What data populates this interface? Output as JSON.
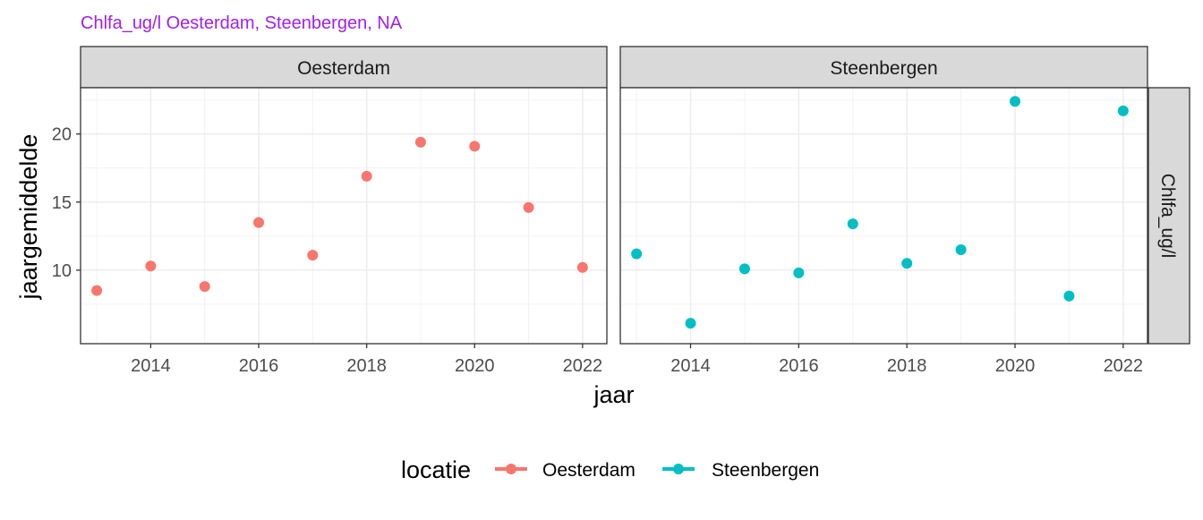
{
  "chart_data": {
    "type": "scatter",
    "title": "Chlfa_ug/l Oesterdam, Steenbergen, NA",
    "xlabel": "jaar",
    "ylabel": "jaargemiddelde",
    "strip_right": "Chlfa_ug/l",
    "xlim": [
      2012.7,
      2022.45
    ],
    "ylim": [
      4.6,
      23.4
    ],
    "x_ticks": [
      2014,
      2016,
      2018,
      2020,
      2022
    ],
    "x_tick_labels": [
      "2014",
      "2016",
      "2018",
      "2020",
      "2022"
    ],
    "y_ticks": [
      10,
      15,
      20
    ],
    "y_tick_labels": [
      "10",
      "15",
      "20"
    ],
    "grid": true,
    "legend": {
      "title": "locatie",
      "position": "bottom",
      "entries": [
        "Oesterdam",
        "Steenbergen"
      ]
    },
    "panels": [
      {
        "strip": "Oesterdam",
        "series": [
          {
            "name": "Oesterdam",
            "color": "#F8766D",
            "x": [
              2013,
              2014,
              2015,
              2016,
              2017,
              2018,
              2019,
              2020,
              2021,
              2022
            ],
            "y": [
              8.5,
              10.3,
              8.8,
              13.5,
              11.1,
              16.9,
              19.4,
              19.1,
              14.6,
              10.2
            ]
          }
        ]
      },
      {
        "strip": "Steenbergen",
        "series": [
          {
            "name": "Steenbergen",
            "color": "#00BFC4",
            "x": [
              2013,
              2014,
              2015,
              2016,
              2017,
              2018,
              2019,
              2020,
              2021,
              2022
            ],
            "y": [
              11.2,
              6.1,
              10.1,
              9.8,
              13.4,
              10.5,
              11.5,
              22.4,
              8.1,
              21.7
            ]
          }
        ]
      }
    ]
  }
}
